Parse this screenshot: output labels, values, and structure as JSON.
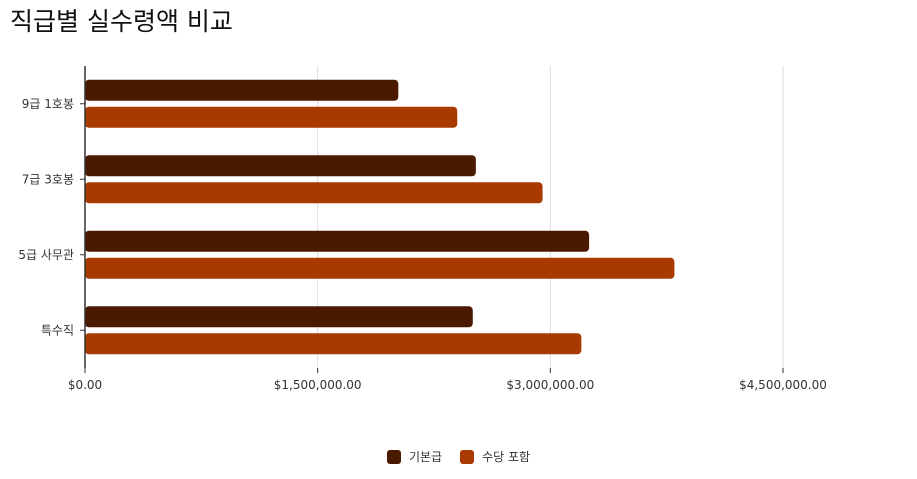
{
  "chart_data": {
    "type": "bar",
    "orientation": "horizontal",
    "title": "직급별 실수령액 비교",
    "categories": [
      "9급 1호봉",
      "7급 3호봉",
      "5급 사무관",
      "특수직"
    ],
    "series": [
      {
        "name": "기본급",
        "values": [
          2020000,
          2520000,
          3250000,
          2500000
        ],
        "color": "#4a1a00"
      },
      {
        "name": "수당 포함",
        "values": [
          2400000,
          2950000,
          3800000,
          3200000
        ],
        "color": "#a83a00"
      }
    ],
    "xlim": [
      0,
      4500000
    ],
    "xticks": [
      0,
      1500000,
      3000000,
      4500000
    ],
    "xtick_labels": [
      "$0.00",
      "$1,500,000.00",
      "$3,000,000.00",
      "$4,500,000.00"
    ],
    "xlabel": "",
    "ylabel": "",
    "grid": true,
    "legend_position": "bottom"
  }
}
